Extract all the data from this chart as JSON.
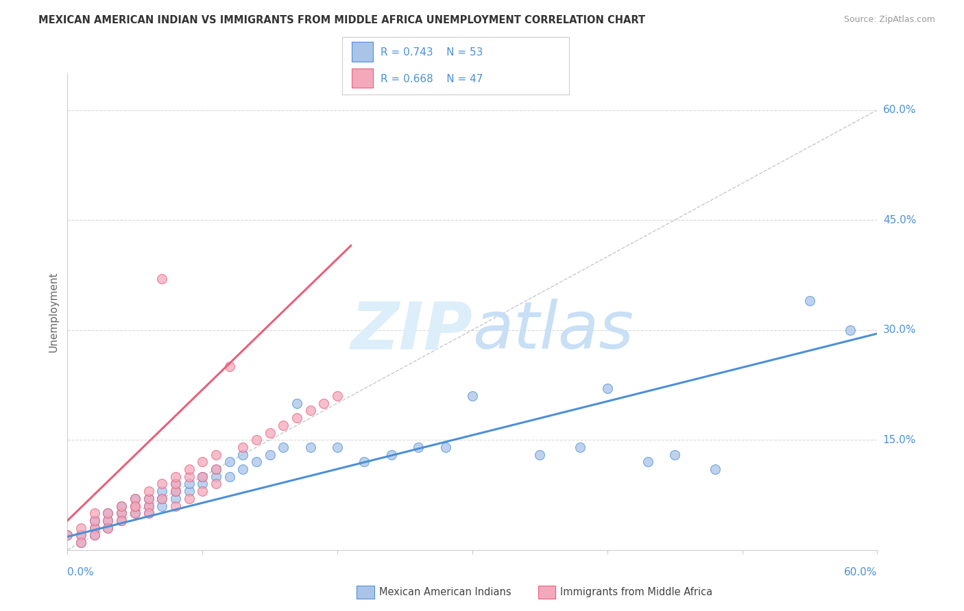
{
  "title": "MEXICAN AMERICAN INDIAN VS IMMIGRANTS FROM MIDDLE AFRICA UNEMPLOYMENT CORRELATION CHART",
  "source": "Source: ZipAtlas.com",
  "ylabel": "Unemployment",
  "xlim": [
    0.0,
    0.6
  ],
  "ylim": [
    0.0,
    0.65
  ],
  "yticks": [
    0.0,
    0.15,
    0.3,
    0.45,
    0.6
  ],
  "ytick_labels": [
    "",
    "15.0%",
    "30.0%",
    "45.0%",
    "60.0%"
  ],
  "legend_r1": "R = 0.743",
  "legend_n1": "N = 53",
  "legend_r2": "R = 0.668",
  "legend_n2": "N = 47",
  "series1_color": "#aac4e8",
  "series2_color": "#f4a8bc",
  "line1_color": "#4a90d9",
  "line2_color": "#e8607a",
  "watermark_color": "#dceefa",
  "background_color": "#ffffff",
  "grid_color": "#d8d8d8",
  "spine_color": "#cccccc",
  "blue_scatter": [
    [
      0.0,
      0.02
    ],
    [
      0.01,
      0.01
    ],
    [
      0.01,
      0.02
    ],
    [
      0.02,
      0.02
    ],
    [
      0.02,
      0.03
    ],
    [
      0.02,
      0.04
    ],
    [
      0.03,
      0.03
    ],
    [
      0.03,
      0.04
    ],
    [
      0.03,
      0.05
    ],
    [
      0.04,
      0.04
    ],
    [
      0.04,
      0.05
    ],
    [
      0.04,
      0.06
    ],
    [
      0.05,
      0.05
    ],
    [
      0.05,
      0.06
    ],
    [
      0.05,
      0.07
    ],
    [
      0.06,
      0.05
    ],
    [
      0.06,
      0.06
    ],
    [
      0.06,
      0.07
    ],
    [
      0.07,
      0.06
    ],
    [
      0.07,
      0.07
    ],
    [
      0.07,
      0.08
    ],
    [
      0.08,
      0.07
    ],
    [
      0.08,
      0.08
    ],
    [
      0.08,
      0.09
    ],
    [
      0.09,
      0.08
    ],
    [
      0.09,
      0.09
    ],
    [
      0.1,
      0.09
    ],
    [
      0.1,
      0.1
    ],
    [
      0.11,
      0.1
    ],
    [
      0.11,
      0.11
    ],
    [
      0.12,
      0.1
    ],
    [
      0.12,
      0.12
    ],
    [
      0.13,
      0.11
    ],
    [
      0.13,
      0.13
    ],
    [
      0.14,
      0.12
    ],
    [
      0.15,
      0.13
    ],
    [
      0.16,
      0.14
    ],
    [
      0.17,
      0.2
    ],
    [
      0.18,
      0.14
    ],
    [
      0.2,
      0.14
    ],
    [
      0.22,
      0.12
    ],
    [
      0.24,
      0.13
    ],
    [
      0.26,
      0.14
    ],
    [
      0.28,
      0.14
    ],
    [
      0.3,
      0.21
    ],
    [
      0.35,
      0.13
    ],
    [
      0.38,
      0.14
    ],
    [
      0.4,
      0.22
    ],
    [
      0.43,
      0.12
    ],
    [
      0.45,
      0.13
    ],
    [
      0.48,
      0.11
    ],
    [
      0.55,
      0.34
    ],
    [
      0.58,
      0.3
    ]
  ],
  "pink_scatter": [
    [
      0.0,
      0.02
    ],
    [
      0.01,
      0.02
    ],
    [
      0.01,
      0.03
    ],
    [
      0.02,
      0.03
    ],
    [
      0.02,
      0.04
    ],
    [
      0.02,
      0.05
    ],
    [
      0.03,
      0.04
    ],
    [
      0.03,
      0.05
    ],
    [
      0.04,
      0.05
    ],
    [
      0.04,
      0.06
    ],
    [
      0.05,
      0.05
    ],
    [
      0.05,
      0.06
    ],
    [
      0.05,
      0.07
    ],
    [
      0.06,
      0.06
    ],
    [
      0.06,
      0.07
    ],
    [
      0.06,
      0.08
    ],
    [
      0.07,
      0.07
    ],
    [
      0.07,
      0.09
    ],
    [
      0.07,
      0.37
    ],
    [
      0.08,
      0.08
    ],
    [
      0.08,
      0.09
    ],
    [
      0.09,
      0.1
    ],
    [
      0.09,
      0.11
    ],
    [
      0.1,
      0.1
    ],
    [
      0.1,
      0.12
    ],
    [
      0.11,
      0.11
    ],
    [
      0.11,
      0.13
    ],
    [
      0.12,
      0.25
    ],
    [
      0.13,
      0.14
    ],
    [
      0.14,
      0.15
    ],
    [
      0.15,
      0.16
    ],
    [
      0.16,
      0.17
    ],
    [
      0.17,
      0.18
    ],
    [
      0.18,
      0.19
    ],
    [
      0.19,
      0.2
    ],
    [
      0.2,
      0.21
    ],
    [
      0.08,
      0.06
    ],
    [
      0.09,
      0.07
    ],
    [
      0.1,
      0.08
    ],
    [
      0.11,
      0.09
    ],
    [
      0.06,
      0.05
    ],
    [
      0.04,
      0.04
    ],
    [
      0.03,
      0.03
    ],
    [
      0.02,
      0.02
    ],
    [
      0.01,
      0.01
    ],
    [
      0.05,
      0.06
    ],
    [
      0.08,
      0.1
    ]
  ],
  "blue_line": [
    [
      0.0,
      0.018
    ],
    [
      0.6,
      0.295
    ]
  ],
  "pink_line": [
    [
      0.0,
      0.04
    ],
    [
      0.21,
      0.415
    ]
  ],
  "diag_line": [
    [
      0.0,
      0.0
    ],
    [
      0.6,
      0.6
    ]
  ]
}
